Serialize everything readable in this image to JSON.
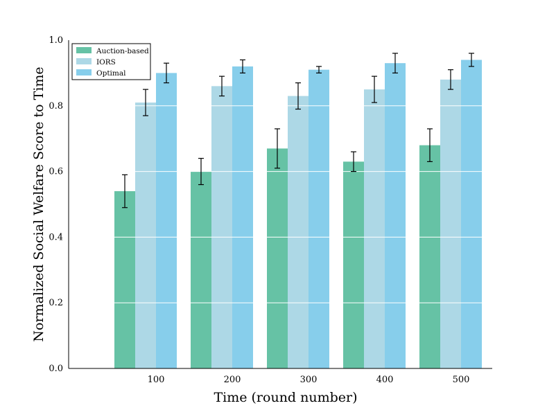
{
  "chart_data": {
    "type": "bar",
    "title": "",
    "xlabel": "Time (round number)",
    "ylabel": "Normalized Social Welfare Score to Time",
    "categories": [
      "100",
      "200",
      "300",
      "400",
      "500"
    ],
    "ylim": [
      0,
      1.0
    ],
    "yticks": [
      "0.0",
      "0.2",
      "0.4",
      "0.6",
      "0.8",
      "1.0"
    ],
    "grid": "horizontal, white",
    "legend_position": "top-left",
    "series": [
      {
        "name": "Auction-based",
        "color": "#66c2a5",
        "values": [
          0.54,
          0.6,
          0.67,
          0.63,
          0.68
        ],
        "errors": [
          0.05,
          0.04,
          0.06,
          0.03,
          0.05
        ]
      },
      {
        "name": "IORS",
        "color": "#add8e6",
        "values": [
          0.81,
          0.86,
          0.83,
          0.85,
          0.88
        ],
        "errors": [
          0.04,
          0.03,
          0.04,
          0.04,
          0.03
        ]
      },
      {
        "name": "Optimal",
        "color": "#87ceeb",
        "values": [
          0.9,
          0.92,
          0.91,
          0.93,
          0.94
        ],
        "errors": [
          0.03,
          0.02,
          0.01,
          0.03,
          0.02
        ]
      }
    ]
  }
}
